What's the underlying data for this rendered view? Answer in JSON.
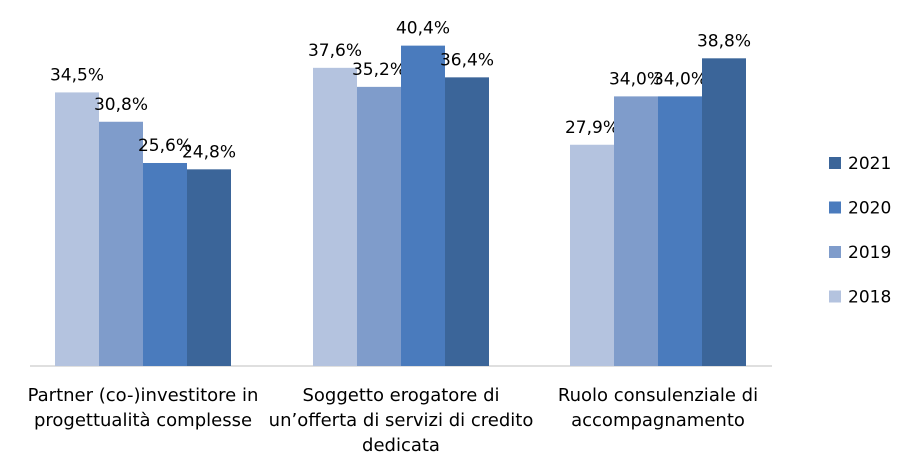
{
  "chart_data": {
    "type": "bar",
    "categories": [
      "Partner (co-)investitore in progettualità complesse",
      "Soggetto erogatore di un’offerta di servizi di credito dedicata",
      "Ruolo consulenziale di accompagnamento"
    ],
    "series": [
      {
        "name": "2018",
        "color": "#b4c3df",
        "values": [
          34.5,
          37.6,
          27.9
        ],
        "value_labels": [
          "34,5%",
          "37,6%",
          "27,9%"
        ]
      },
      {
        "name": "2019",
        "color": "#7f9ccb",
        "values": [
          30.8,
          35.2,
          34.0
        ],
        "value_labels": [
          "30,8%",
          "35,2%",
          "34,0%"
        ]
      },
      {
        "name": "2020",
        "color": "#4a7bbd",
        "values": [
          25.6,
          40.4,
          34.0
        ],
        "value_labels": [
          "25,6%",
          "40,4%",
          "34,0%"
        ]
      },
      {
        "name": "2021",
        "color": "#3b6599",
        "values": [
          24.8,
          36.4,
          38.8
        ],
        "value_labels": [
          "24,8%",
          "36,4%",
          "38,8%"
        ]
      }
    ],
    "legend": "right"
  }
}
